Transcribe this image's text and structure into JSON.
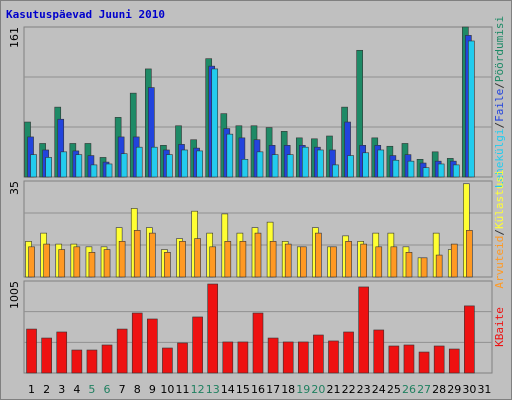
{
  "title": "Kasutuspäevad Juuni 2010",
  "legend_separator": "/",
  "weekend_color": "#208060",
  "weekend_indices": [
    4,
    5,
    11,
    12,
    18,
    19,
    25,
    26
  ],
  "chart_data": [
    {
      "type": "bar",
      "ylim": [
        0,
        161
      ],
      "yticks": [
        161
      ],
      "series": [
        {
          "name": "Pöördumisi",
          "color": "#1e8a66",
          "values": [
            59,
            36,
            75,
            36,
            36,
            21,
            64,
            90,
            116,
            34,
            55,
            40,
            127,
            68,
            55,
            55,
            53,
            49,
            42,
            41,
            44,
            75,
            136,
            42,
            33,
            36,
            19,
            27,
            20,
            161,
            null
          ]
        },
        {
          "name": "Faile",
          "color": "#2244dd",
          "values": [
            43,
            29,
            62,
            28,
            23,
            16,
            43,
            43,
            96,
            29,
            35,
            31,
            119,
            52,
            42,
            40,
            34,
            34,
            34,
            32,
            29,
            59,
            34,
            34,
            23,
            24,
            15,
            17,
            17,
            152,
            null
          ]
        },
        {
          "name": "Lehekülgi",
          "color": "#22ccee",
          "values": [
            24,
            21,
            27,
            24,
            13,
            14,
            25,
            32,
            32,
            24,
            29,
            28,
            116,
            46,
            19,
            27,
            24,
            24,
            32,
            29,
            13,
            23,
            26,
            29,
            18,
            17,
            10,
            14,
            13,
            146,
            null
          ]
        }
      ]
    },
    {
      "type": "bar",
      "ylim": [
        0,
        35
      ],
      "yticks": [
        35
      ],
      "series": [
        {
          "name": "Külastusi",
          "color": "#ffff33",
          "values": [
            13,
            16,
            12,
            12,
            11,
            11,
            18,
            25,
            18,
            10,
            14,
            24,
            16,
            23,
            16,
            18,
            20,
            13,
            11,
            18,
            11,
            15,
            13,
            16,
            16,
            11,
            7,
            16,
            10,
            34,
            null
          ]
        },
        {
          "name": "Arvuteid",
          "color": "#ff9922",
          "values": [
            11,
            12,
            10,
            11,
            9,
            10,
            13,
            17,
            16,
            9,
            13,
            14,
            11,
            13,
            13,
            16,
            13,
            12,
            11,
            16,
            11,
            13,
            12,
            11,
            11,
            9,
            7,
            8,
            12,
            17,
            null
          ]
        }
      ]
    },
    {
      "type": "bar",
      "ylim": [
        0,
        1005
      ],
      "yticks": [
        1005
      ],
      "categories": [
        "1",
        "2",
        "3",
        "4",
        "5",
        "6",
        "7",
        "8",
        "9",
        "10",
        "11",
        "12",
        "13",
        "14",
        "15",
        "16",
        "17",
        "18",
        "19",
        "20",
        "21",
        "22",
        "23",
        "24",
        "25",
        "26",
        "27",
        "28",
        "29",
        "30",
        "31"
      ],
      "series": [
        {
          "name": "KBaite",
          "color": "#ee1111",
          "values": [
            480,
            382,
            448,
            251,
            251,
            306,
            480,
            655,
            590,
            273,
            328,
            612,
            972,
            339,
            339,
            655,
            382,
            339,
            339,
            415,
            350,
            448,
            940,
            470,
            295,
            306,
            229,
            295,
            262,
            733,
            null
          ]
        }
      ]
    }
  ]
}
